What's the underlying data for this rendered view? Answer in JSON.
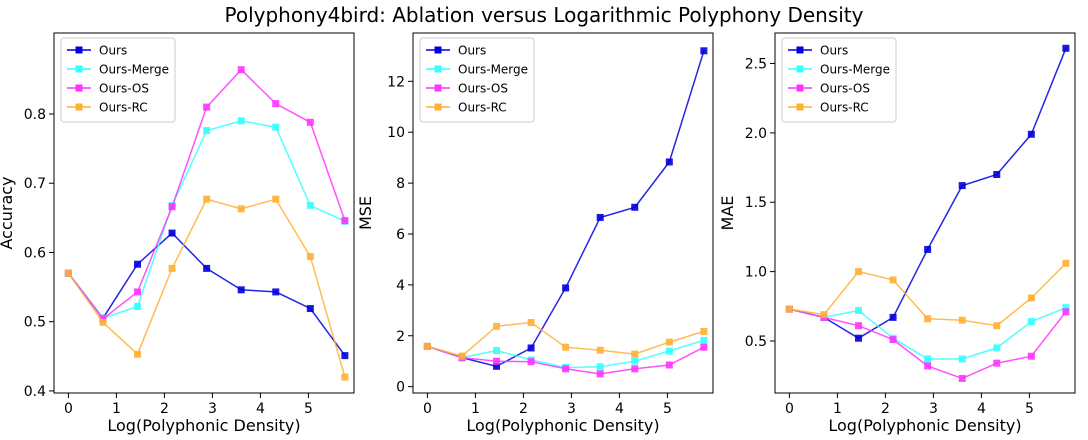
{
  "figure": {
    "title": "Polyphony4bird: Ablation versus Logarithmic Polyphony Density"
  },
  "colors": {
    "Ours": "#0000dd",
    "Ours-Merge": "#33ffff",
    "Ours-OS": "#ff33ff",
    "Ours-RC": "#ffb033"
  },
  "chart_data": [
    {
      "type": "line",
      "xlabel": "Log(Polyphonic Density)",
      "ylabel": "Accuracy",
      "xlim": [
        -0.3,
        5.95
      ],
      "ylim": [
        0.397,
        0.917
      ],
      "xticks": [
        0,
        1,
        2,
        3,
        4,
        5
      ],
      "yticks": [
        0.4,
        0.5,
        0.6,
        0.7,
        0.8
      ],
      "ytick_labels": [
        "0.4",
        "0.5",
        "0.6",
        "0.7",
        "0.8"
      ],
      "grid": false,
      "legend_position": "top-left",
      "x": [
        0,
        0.72,
        1.44,
        2.16,
        2.88,
        3.6,
        4.32,
        5.04,
        5.76
      ],
      "series": [
        {
          "name": "Ours",
          "values": [
            0.57,
            0.505,
            0.583,
            0.628,
            0.577,
            0.546,
            0.543,
            0.519,
            0.451
          ]
        },
        {
          "name": "Ours-Merge",
          "values": [
            0.57,
            0.505,
            0.522,
            0.668,
            0.776,
            0.79,
            0.781,
            0.668,
            0.645
          ]
        },
        {
          "name": "Ours-OS",
          "values": [
            0.57,
            0.504,
            0.543,
            0.666,
            0.81,
            0.864,
            0.815,
            0.788,
            0.646
          ]
        },
        {
          "name": "Ours-RC",
          "values": [
            0.57,
            0.499,
            0.453,
            0.577,
            0.677,
            0.663,
            0.677,
            0.594,
            0.42
          ]
        }
      ]
    },
    {
      "type": "line",
      "xlabel": "Log(Polyphonic Density)",
      "ylabel": "MSE",
      "xlim": [
        -0.3,
        5.95
      ],
      "ylim": [
        -0.25,
        13.9
      ],
      "xticks": [
        0,
        1,
        2,
        3,
        4,
        5
      ],
      "yticks": [
        0,
        2,
        4,
        6,
        8,
        10,
        12
      ],
      "ytick_labels": [
        "0",
        "2",
        "4",
        "6",
        "8",
        "10",
        "12"
      ],
      "grid": false,
      "legend_position": "top-left",
      "x": [
        0,
        0.72,
        1.44,
        2.16,
        2.88,
        3.6,
        4.32,
        5.04,
        5.76
      ],
      "series": [
        {
          "name": "Ours",
          "values": [
            1.58,
            1.14,
            0.8,
            1.52,
            3.88,
            6.65,
            7.05,
            8.83,
            13.2
          ]
        },
        {
          "name": "Ours-Merge",
          "values": [
            1.58,
            1.14,
            1.42,
            1.05,
            0.75,
            0.78,
            1.0,
            1.4,
            1.82
          ]
        },
        {
          "name": "Ours-OS",
          "values": [
            1.58,
            1.14,
            1.0,
            0.98,
            0.7,
            0.5,
            0.7,
            0.85,
            1.55
          ]
        },
        {
          "name": "Ours-RC",
          "values": [
            1.58,
            1.2,
            2.37,
            2.52,
            1.55,
            1.43,
            1.28,
            1.75,
            2.17
          ]
        }
      ]
    },
    {
      "type": "line",
      "xlabel": "Log(Polyphonic Density)",
      "ylabel": "MAE",
      "xlim": [
        -0.3,
        5.95
      ],
      "ylim": [
        0.125,
        2.72
      ],
      "xticks": [
        0,
        1,
        2,
        3,
        4,
        5
      ],
      "yticks": [
        0.5,
        1.0,
        1.5,
        2.0,
        2.5
      ],
      "ytick_labels": [
        "0.5",
        "1.0",
        "1.5",
        "2.0",
        "2.5"
      ],
      "grid": false,
      "legend_position": "top-left",
      "x": [
        0,
        0.72,
        1.44,
        2.16,
        2.88,
        3.6,
        4.32,
        5.04,
        5.76
      ],
      "series": [
        {
          "name": "Ours",
          "values": [
            0.73,
            0.67,
            0.52,
            0.67,
            1.16,
            1.62,
            1.7,
            1.99,
            2.61
          ]
        },
        {
          "name": "Ours-Merge",
          "values": [
            0.73,
            0.67,
            0.72,
            0.52,
            0.37,
            0.37,
            0.45,
            0.64,
            0.74
          ]
        },
        {
          "name": "Ours-OS",
          "values": [
            0.73,
            0.67,
            0.61,
            0.51,
            0.32,
            0.23,
            0.34,
            0.39,
            0.71
          ]
        },
        {
          "name": "Ours-RC",
          "values": [
            0.73,
            0.69,
            1.0,
            0.94,
            0.66,
            0.65,
            0.61,
            0.81,
            1.06
          ]
        }
      ]
    }
  ]
}
